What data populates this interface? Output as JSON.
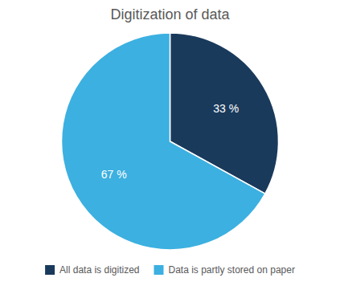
{
  "chart_data": {
    "type": "pie",
    "title": "Digitization of data",
    "categories": [
      "All data is digitized",
      "Data is partly stored on paper"
    ],
    "values": [
      33,
      67
    ],
    "value_labels": [
      "33 %",
      "67 %"
    ],
    "colors": [
      "#1a3a5c",
      "#3cb0e0"
    ],
    "data_labels": true,
    "legend": "bottom"
  }
}
